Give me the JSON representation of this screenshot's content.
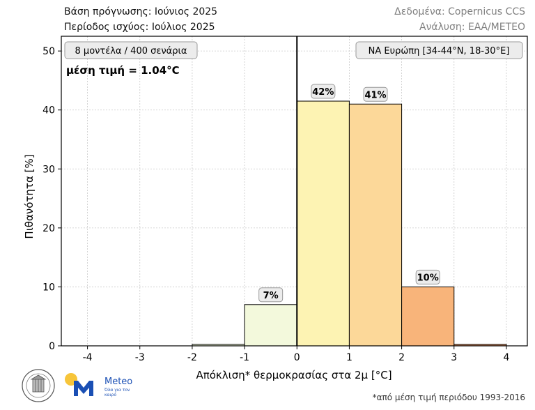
{
  "header": {
    "forecast_base": "Βάση πρόγνωσης: Ιούνιος 2025",
    "validity_period": "Περίοδος ισχύος: Ιούλιος 2025",
    "data_source": "Δεδομένα: Copernicus CCS",
    "analysis": "Ανάλυση: ΕΑΑ/METEO"
  },
  "footnote": "*από μέση τιμή περιόδου 1993-2016",
  "logos": {
    "meteo_name": "Meteo",
    "meteo_tagline": "Όλα για τον καιρό"
  },
  "colors": {
    "bin_-1_0": "#f3f9dc",
    "bin_0_1": "#fdf3b3",
    "bin_1_2": "#fcd899",
    "bin_2_3": "#f8b47a",
    "bin_3_4": "#d98a5a",
    "bin_-2_-1": "#e8efd0",
    "meteo_blue": "#1a4fb4",
    "sun_yellow": "#f7c53a"
  },
  "chart_data": {
    "type": "bar",
    "title": "",
    "xlabel": "Απόκλιση* θερμοκρασίας στα 2μ [°C]",
    "ylabel": "Πιθανότητα [%]",
    "xlim": [
      -4.5,
      4.4
    ],
    "ylim": [
      0,
      52.5
    ],
    "xticks": [
      -4,
      -3,
      -2,
      -1,
      0,
      1,
      2,
      3,
      4
    ],
    "yticks": [
      0,
      10,
      20,
      30,
      40,
      50
    ],
    "grid": true,
    "bins": [
      {
        "from": -2,
        "to": -1,
        "value": 0.25,
        "label": ""
      },
      {
        "from": -1,
        "to": 0,
        "value": 7,
        "label": "7%"
      },
      {
        "from": 0,
        "to": 1,
        "value": 41.5,
        "label": "42%"
      },
      {
        "from": 1,
        "to": 2,
        "value": 41,
        "label": "41%"
      },
      {
        "from": 2,
        "to": 3,
        "value": 10,
        "label": "10%"
      },
      {
        "from": 3,
        "to": 4,
        "value": 0.25,
        "label": ""
      }
    ],
    "annotations": {
      "models": "8 μοντέλα / 400 σενάρια",
      "mean": "μέση τιμή = 1.04°C",
      "region": "ΝΑ Ευρώπη [34-44°N, 18-30°E]"
    }
  }
}
